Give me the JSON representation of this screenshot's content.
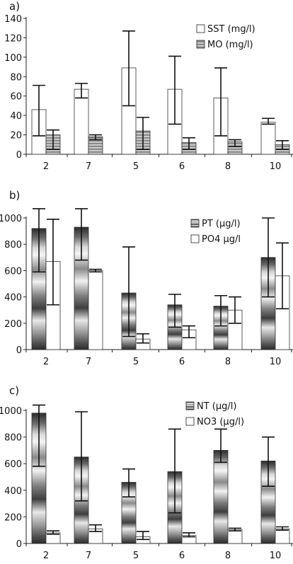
{
  "chart_data": [
    {
      "type": "bar",
      "panel_label": "a)",
      "categories": [
        "2",
        "7",
        "5",
        "6",
        "8",
        "10"
      ],
      "ylim": [
        0,
        140
      ],
      "yticks": [
        0,
        20,
        40,
        60,
        80,
        100,
        120,
        140
      ],
      "legend_position": "top-right",
      "series": [
        {
          "name": "SST (mg/l)",
          "style": "white",
          "values": [
            46,
            67,
            89,
            67,
            58,
            33
          ],
          "err_low": [
            19,
            58,
            50,
            31,
            19,
            31
          ],
          "err_high": [
            71,
            73,
            127,
            101,
            89,
            37
          ]
        },
        {
          "name": "MO (mg/l)",
          "style": "striped",
          "values": [
            20,
            18,
            24,
            12,
            13,
            10
          ],
          "err_low": [
            5,
            15,
            5,
            5,
            8,
            5
          ],
          "err_high": [
            25,
            20,
            38,
            17,
            15,
            14
          ]
        }
      ]
    },
    {
      "type": "bar",
      "panel_label": "b)",
      "categories": [
        "2",
        "7",
        "5",
        "6",
        "8",
        "10"
      ],
      "ylim": [
        0,
        1000
      ],
      "yticks": [
        0,
        200,
        400,
        600,
        800,
        1000
      ],
      "legend_position": "top-right",
      "series": [
        {
          "name": "PT (µg/l)",
          "style": "gradient",
          "values": [
            920,
            930,
            430,
            340,
            330,
            700
          ],
          "err_low": [
            590,
            680,
            100,
            170,
            180,
            400
          ],
          "err_high": [
            1070,
            1070,
            780,
            420,
            410,
            1000
          ]
        },
        {
          "name": "PO4 µg/l",
          "style": "white",
          "values": [
            670,
            600,
            80,
            150,
            300,
            560
          ],
          "err_low": [
            340,
            590,
            50,
            90,
            200,
            310
          ],
          "err_high": [
            990,
            610,
            120,
            180,
            400,
            810
          ]
        }
      ]
    },
    {
      "type": "bar",
      "panel_label": "c)",
      "categories": [
        "2",
        "7",
        "5",
        "6",
        "8",
        "10"
      ],
      "ylim": [
        0,
        1000
      ],
      "yticks": [
        0,
        200,
        400,
        600,
        800,
        1000
      ],
      "legend_position": "top-right",
      "series": [
        {
          "name": "NT (µg/l)",
          "style": "gradient",
          "values": [
            980,
            650,
            460,
            540,
            700,
            620
          ],
          "err_low": [
            580,
            320,
            350,
            230,
            610,
            430
          ],
          "err_high": [
            1040,
            990,
            560,
            860,
            860,
            800
          ]
        },
        {
          "name": "NO3 (µg/l)",
          "style": "white",
          "values": [
            80,
            110,
            50,
            60,
            105,
            110
          ],
          "err_low": [
            70,
            90,
            30,
            50,
            95,
            100
          ],
          "err_high": [
            95,
            140,
            90,
            80,
            115,
            125
          ]
        }
      ]
    }
  ]
}
